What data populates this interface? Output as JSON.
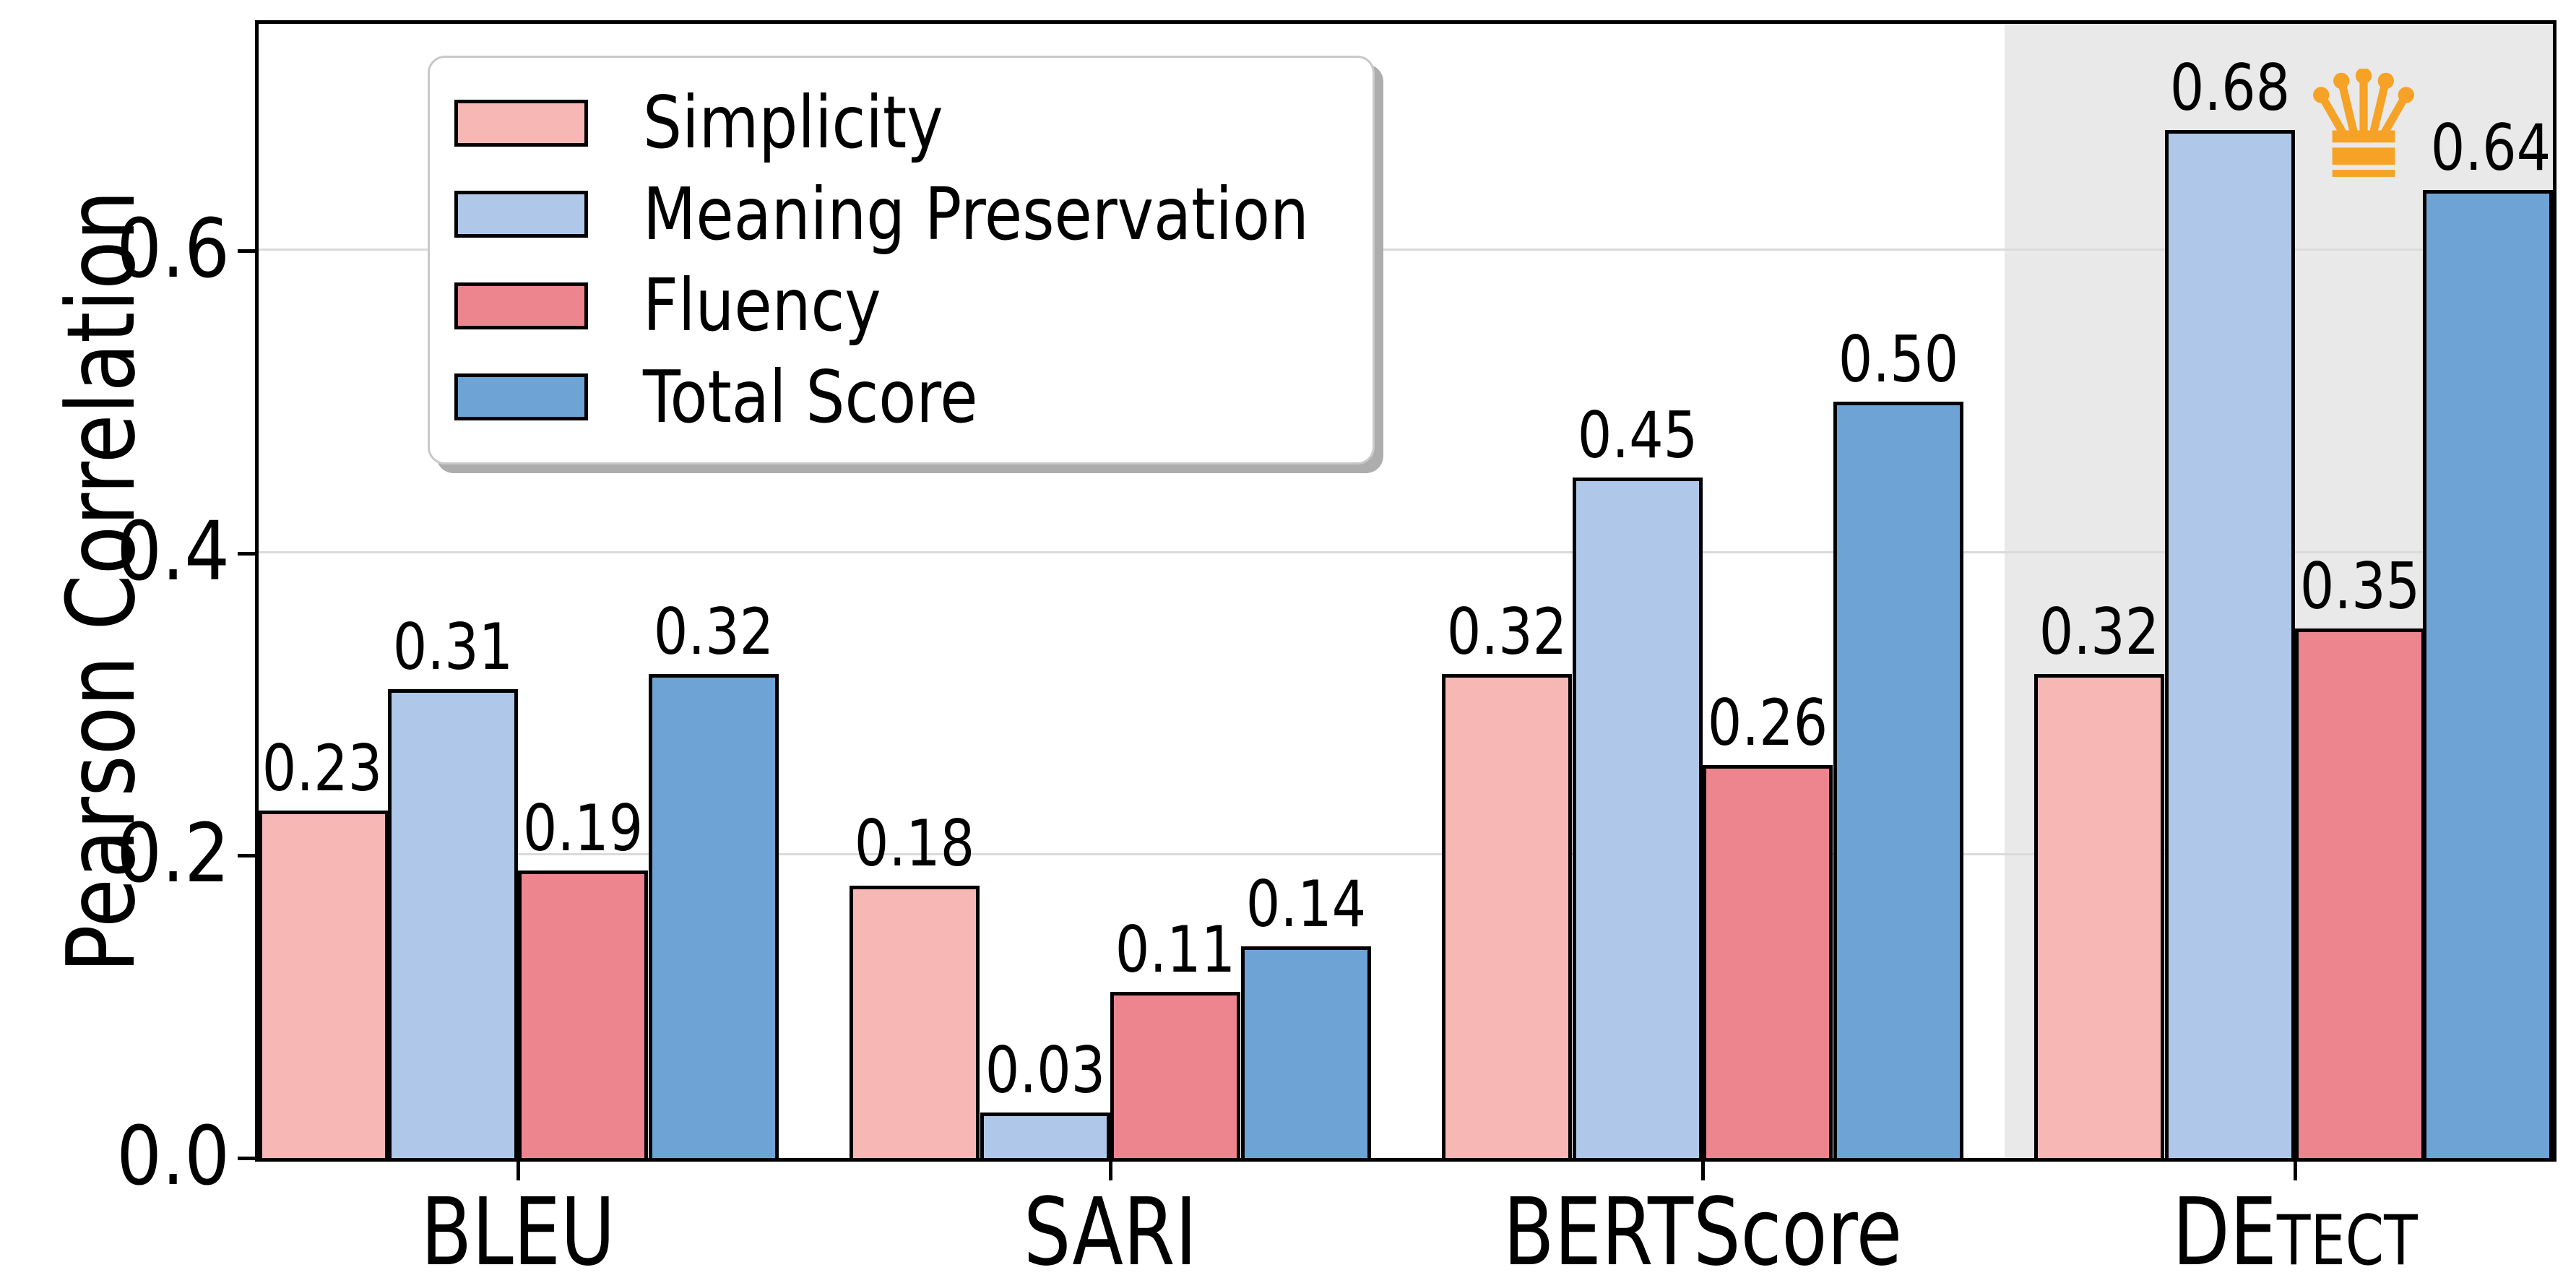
{
  "chart_data": {
    "type": "bar",
    "title": "",
    "xlabel": "",
    "ylabel": "Pearson Correlation",
    "categories": [
      "BLEU",
      "SARI",
      "BERTScore",
      "DETECT"
    ],
    "category_display": [
      {
        "text": "BLEU"
      },
      {
        "text": "SARI"
      },
      {
        "text": "BERTScore"
      },
      {
        "prefix": "DE",
        "smallcaps": "TECT"
      }
    ],
    "series": [
      {
        "name": "Simplicity",
        "color": "#f7b8b5",
        "values": [
          0.23,
          0.18,
          0.32,
          0.32
        ]
      },
      {
        "name": "Meaning Preservation",
        "color": "#afc8e9",
        "values": [
          0.31,
          0.03,
          0.45,
          0.68
        ]
      },
      {
        "name": "Fluency",
        "color": "#ed858e",
        "values": [
          0.19,
          0.11,
          0.26,
          0.35
        ]
      },
      {
        "name": "Total Score",
        "color": "#6ea3d6",
        "values": [
          0.32,
          0.14,
          0.5,
          0.64
        ]
      }
    ],
    "value_labels": [
      [
        "0.23",
        "0.31",
        "0.19",
        "0.32"
      ],
      [
        "0.18",
        "0.03",
        "0.11",
        "0.14"
      ],
      [
        "0.32",
        "0.45",
        "0.26",
        "0.50"
      ],
      [
        "0.32",
        "0.68",
        "0.35",
        "0.64"
      ]
    ],
    "yticks": [
      {
        "value": 0.0,
        "label": "0.0"
      },
      {
        "value": 0.2,
        "label": "0.2"
      },
      {
        "value": 0.4,
        "label": "0.4"
      },
      {
        "value": 0.6,
        "label": "0.6"
      }
    ],
    "ylim": [
      0,
      0.75
    ],
    "grid": "horizontal",
    "legend_position": "upper-left",
    "colors": {
      "background": "#ffffff",
      "bar_edge": "#000000",
      "spine": "#000000",
      "grid": "#dadada",
      "highlight_band": "#e9e9e9",
      "crown": "#f6a227"
    },
    "highlight": {
      "category": "DETECT",
      "icon": "crown-icon",
      "best_series": "Meaning Preservation",
      "best_value": 0.68
    }
  }
}
